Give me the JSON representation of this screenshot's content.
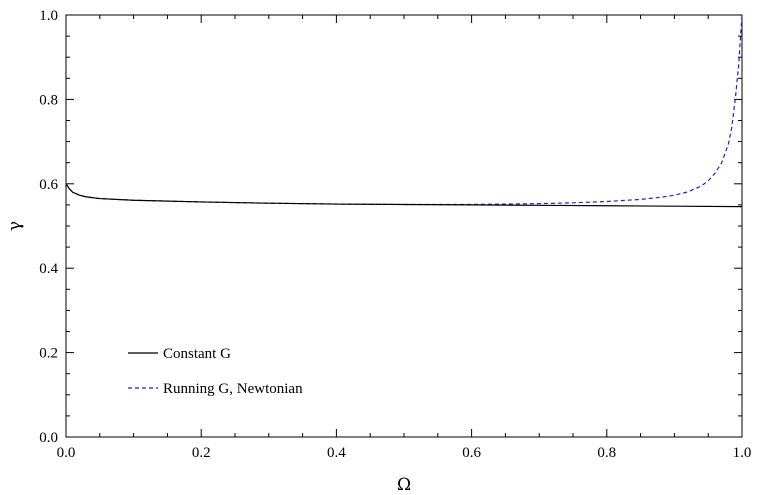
{
  "chart_data": {
    "type": "line",
    "xlabel": "Ω",
    "ylabel": "γ",
    "xlim": [
      0.0,
      1.0
    ],
    "ylim": [
      0.0,
      1.0
    ],
    "xticks": [
      "0.0",
      "0.2",
      "0.4",
      "0.6",
      "0.8",
      "1.0"
    ],
    "yticks": [
      "0.0",
      "0.2",
      "0.4",
      "0.6",
      "0.8",
      "1.0"
    ],
    "grid": false,
    "legend_position": "lower-left",
    "series": [
      {
        "name": "Constant G",
        "color": "#000000",
        "style": "solid",
        "x": [
          0.0,
          0.005,
          0.01,
          0.02,
          0.03,
          0.05,
          0.1,
          0.2,
          0.3,
          0.4,
          0.5,
          0.6,
          0.7,
          0.8,
          0.9,
          1.0
        ],
        "y": [
          0.6,
          0.588,
          0.58,
          0.573,
          0.569,
          0.565,
          0.561,
          0.557,
          0.554,
          0.552,
          0.551,
          0.55,
          0.549,
          0.548,
          0.547,
          0.546
        ]
      },
      {
        "name": "Running G, Newtonian",
        "color": "#1f1fcf",
        "style": "dashed",
        "x": [
          0.0,
          0.005,
          0.01,
          0.02,
          0.03,
          0.05,
          0.1,
          0.2,
          0.3,
          0.4,
          0.5,
          0.6,
          0.7,
          0.75,
          0.8,
          0.85,
          0.88,
          0.9,
          0.92,
          0.94,
          0.95,
          0.96,
          0.97,
          0.98,
          0.985,
          0.99,
          0.995,
          1.0
        ],
        "y": [
          0.6,
          0.588,
          0.58,
          0.573,
          0.569,
          0.565,
          0.561,
          0.557,
          0.554,
          0.552,
          0.551,
          0.551,
          0.553,
          0.555,
          0.558,
          0.563,
          0.568,
          0.573,
          0.581,
          0.595,
          0.607,
          0.625,
          0.65,
          0.695,
          0.735,
          0.8,
          0.88,
          1.0
        ]
      }
    ]
  }
}
